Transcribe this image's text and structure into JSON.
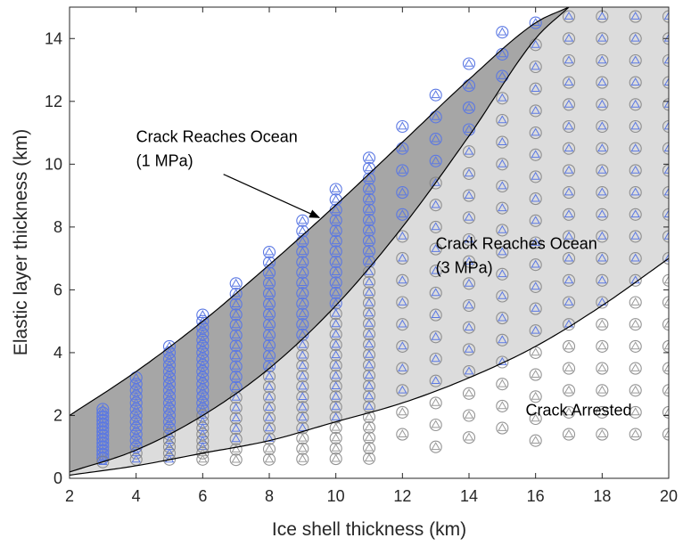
{
  "chart_data": {
    "type": "scatter",
    "title": "",
    "xlabel": "Ice shell thickness (km)",
    "ylabel": "Elastic layer thickness (km)",
    "xlim": [
      2,
      20
    ],
    "ylim": [
      0,
      15
    ],
    "xticks": [
      2,
      4,
      6,
      8,
      10,
      12,
      14,
      16,
      18,
      20
    ],
    "yticks": [
      0,
      2,
      4,
      6,
      8,
      10,
      12,
      14
    ],
    "grid": false,
    "regions": [
      {
        "label": "Crack Reaches Ocean (1 MPa)",
        "color": "#a6a6a6",
        "upper_boundary": {
          "x": [
            2,
            4,
            6,
            8,
            10,
            12,
            14,
            16,
            17
          ],
          "y": [
            2.0,
            3.4,
            5.0,
            6.8,
            8.7,
            10.7,
            12.7,
            14.5,
            15.0
          ]
        },
        "lower_boundary": {
          "x": [
            2,
            4,
            6,
            8,
            10,
            12,
            14,
            16,
            17
          ],
          "y": [
            0.2,
            0.9,
            2.0,
            3.5,
            5.5,
            8.0,
            10.9,
            14.0,
            15.0
          ]
        }
      },
      {
        "label": "Crack Reaches Ocean (3 MPa)",
        "color": "#dcdcdc",
        "upper_boundary": {
          "x": [
            2,
            4,
            6,
            8,
            10,
            12,
            14,
            16,
            17
          ],
          "y": [
            0.2,
            0.9,
            2.0,
            3.5,
            5.5,
            8.0,
            10.9,
            14.0,
            15.0
          ]
        },
        "lower_boundary": {
          "x": [
            2,
            4,
            6,
            8,
            10,
            12,
            14,
            16,
            18,
            20
          ],
          "y": [
            0.1,
            0.4,
            0.8,
            1.2,
            1.8,
            2.4,
            3.2,
            4.2,
            5.5,
            7.0
          ]
        }
      },
      {
        "label": "Crack Arrested",
        "color": "#ffffff"
      }
    ],
    "series": [
      {
        "marker": "circle",
        "color": "#808080",
        "description": "arrested / 3 MPa cracks (gray circles)"
      },
      {
        "marker": "circle",
        "color": "#5b78e3",
        "description": "crack reaches ocean at 1 MPa (blue circles)"
      },
      {
        "marker": "triangle",
        "color": "#5b78e3",
        "description": "crack reaches ocean at 3 MPa (blue triangles)"
      },
      {
        "marker": "triangle",
        "color": "#9a9a9a",
        "description": "arrested (gray triangles)"
      }
    ],
    "grid_points": {
      "x": [
        3,
        4,
        5,
        6,
        7,
        8,
        9,
        10,
        11,
        12,
        13,
        14,
        15,
        16,
        17,
        18,
        19,
        20
      ],
      "y_max": [
        2.2,
        3.2,
        4.2,
        5.2,
        6.2,
        7.2,
        8.2,
        9.2,
        10.2,
        11.2,
        12.2,
        13.2,
        14.2,
        14.5,
        14.7,
        14.7,
        14.7,
        14.7
      ]
    },
    "annotations": [
      {
        "text_lines": [
          "Crack Reaches Ocean",
          "(1 MPa)"
        ],
        "x": 4.0,
        "y": 10.7,
        "arrow_to": [
          9.5,
          8.3
        ]
      },
      {
        "text_lines": [
          "Crack Reaches Ocean",
          "(3 MPa)"
        ],
        "x": 13.0,
        "y": 7.3
      },
      {
        "text_lines": [
          "Crack Arrested"
        ],
        "x": 15.7,
        "y": 2.0
      }
    ]
  }
}
